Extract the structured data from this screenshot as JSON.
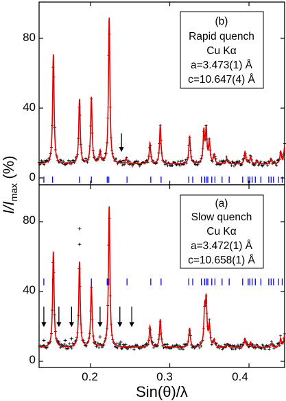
{
  "chart_data": [
    {
      "type": "line",
      "panel": "top",
      "x_range": [
        0.135,
        0.445
      ],
      "ylim": [
        -8,
        98
      ],
      "yticks": [
        0,
        40,
        80
      ],
      "legend": {
        "label": "(b)",
        "lines": [
          "Rapid quench",
          "Cu Kα",
          "a=3.473(1) Å",
          "c=10.647(4) Å"
        ],
        "placement": "top-right"
      },
      "baseline": 8,
      "peaks": [
        {
          "x": 0.153,
          "y": 71
        },
        {
          "x": 0.186,
          "y": 45
        },
        {
          "x": 0.201,
          "y": 46
        },
        {
          "x": 0.212,
          "y": 15
        },
        {
          "x": 0.2235,
          "y": 92
        },
        {
          "x": 0.245,
          "y": 11
        },
        {
          "x": 0.275,
          "y": 20
        },
        {
          "x": 0.288,
          "y": 30
        },
        {
          "x": 0.325,
          "y": 24
        },
        {
          "x": 0.343,
          "y": 26
        },
        {
          "x": 0.346,
          "y": 27
        },
        {
          "x": 0.35,
          "y": 20
        },
        {
          "x": 0.356,
          "y": 13
        },
        {
          "x": 0.372,
          "y": 11
        },
        {
          "x": 0.395,
          "y": 15
        },
        {
          "x": 0.402,
          "y": 12
        },
        {
          "x": 0.41,
          "y": 10
        },
        {
          "x": 0.428,
          "y": 11
        },
        {
          "x": 0.44,
          "y": 15
        },
        {
          "x": 0.445,
          "y": 18
        }
      ],
      "arrows": [
        0.239
      ],
      "bragg_ticks": [
        0.141,
        0.152,
        0.186,
        0.201,
        0.221,
        0.223,
        0.246,
        0.276,
        0.289,
        0.324,
        0.329,
        0.34,
        0.344,
        0.346,
        0.348,
        0.353,
        0.357,
        0.366,
        0.375,
        0.392,
        0.399,
        0.401,
        0.404,
        0.408,
        0.415,
        0.425,
        0.428,
        0.431,
        0.437,
        0.442
      ]
    },
    {
      "type": "line",
      "panel": "bottom",
      "x_range": [
        0.135,
        0.445
      ],
      "ylim": [
        -8,
        98
      ],
      "yticks": [
        0,
        40,
        80
      ],
      "legend": {
        "label": "(a)",
        "lines": [
          "Slow quench",
          "Cu Kα",
          "a=3.472(1) Å",
          "c=10.658(1) Å"
        ],
        "placement": "top-right"
      },
      "baseline": 8,
      "peaks": [
        {
          "x": 0.153,
          "y": 63
        },
        {
          "x": 0.186,
          "y": 57
        },
        {
          "x": 0.201,
          "y": 43
        },
        {
          "x": 0.2235,
          "y": 89
        },
        {
          "x": 0.275,
          "y": 20
        },
        {
          "x": 0.288,
          "y": 24
        },
        {
          "x": 0.325,
          "y": 19
        },
        {
          "x": 0.344,
          "y": 28
        },
        {
          "x": 0.346,
          "y": 33
        },
        {
          "x": 0.35,
          "y": 20
        },
        {
          "x": 0.356,
          "y": 12
        },
        {
          "x": 0.372,
          "y": 10
        },
        {
          "x": 0.395,
          "y": 13
        },
        {
          "x": 0.402,
          "y": 11
        },
        {
          "x": 0.41,
          "y": 9
        },
        {
          "x": 0.428,
          "y": 10
        },
        {
          "x": 0.44,
          "y": 13
        },
        {
          "x": 0.445,
          "y": 15
        }
      ],
      "obs_extras": [
        {
          "x": 0.141,
          "y": 12
        },
        {
          "x": 0.16,
          "y": 11
        },
        {
          "x": 0.168,
          "y": 12
        },
        {
          "x": 0.176,
          "y": 13
        },
        {
          "x": 0.212,
          "y": 14
        },
        {
          "x": 0.238,
          "y": 11
        },
        {
          "x": 0.186,
          "y": 67
        },
        {
          "x": 0.186,
          "y": 76
        }
      ],
      "arrows": [
        0.141,
        0.16,
        0.176,
        0.212,
        0.237,
        0.252
      ],
      "bragg_ticks": [
        0.141,
        0.152,
        0.186,
        0.201,
        0.221,
        0.223,
        0.246,
        0.276,
        0.289,
        0.324,
        0.329,
        0.34,
        0.344,
        0.346,
        0.348,
        0.353,
        0.357,
        0.366,
        0.375,
        0.392,
        0.399,
        0.401,
        0.404,
        0.408,
        0.415,
        0.425,
        0.428,
        0.431,
        0.437,
        0.442
      ]
    }
  ],
  "axes": {
    "xticks": [
      0.2,
      0.3,
      0.4
    ],
    "xtick_labels": [
      "0.2",
      "0.3",
      "0.4"
    ],
    "xlabel": "Sin(θ)/λ",
    "ylabel_main": "I/I",
    "ylabel_sub": "max",
    "ylabel_unit": " (%)"
  },
  "colors": {
    "calc": "#e00000",
    "obs": "#000000",
    "diff": "#000000",
    "bragg": "#1010e0",
    "frame": "#000000"
  }
}
